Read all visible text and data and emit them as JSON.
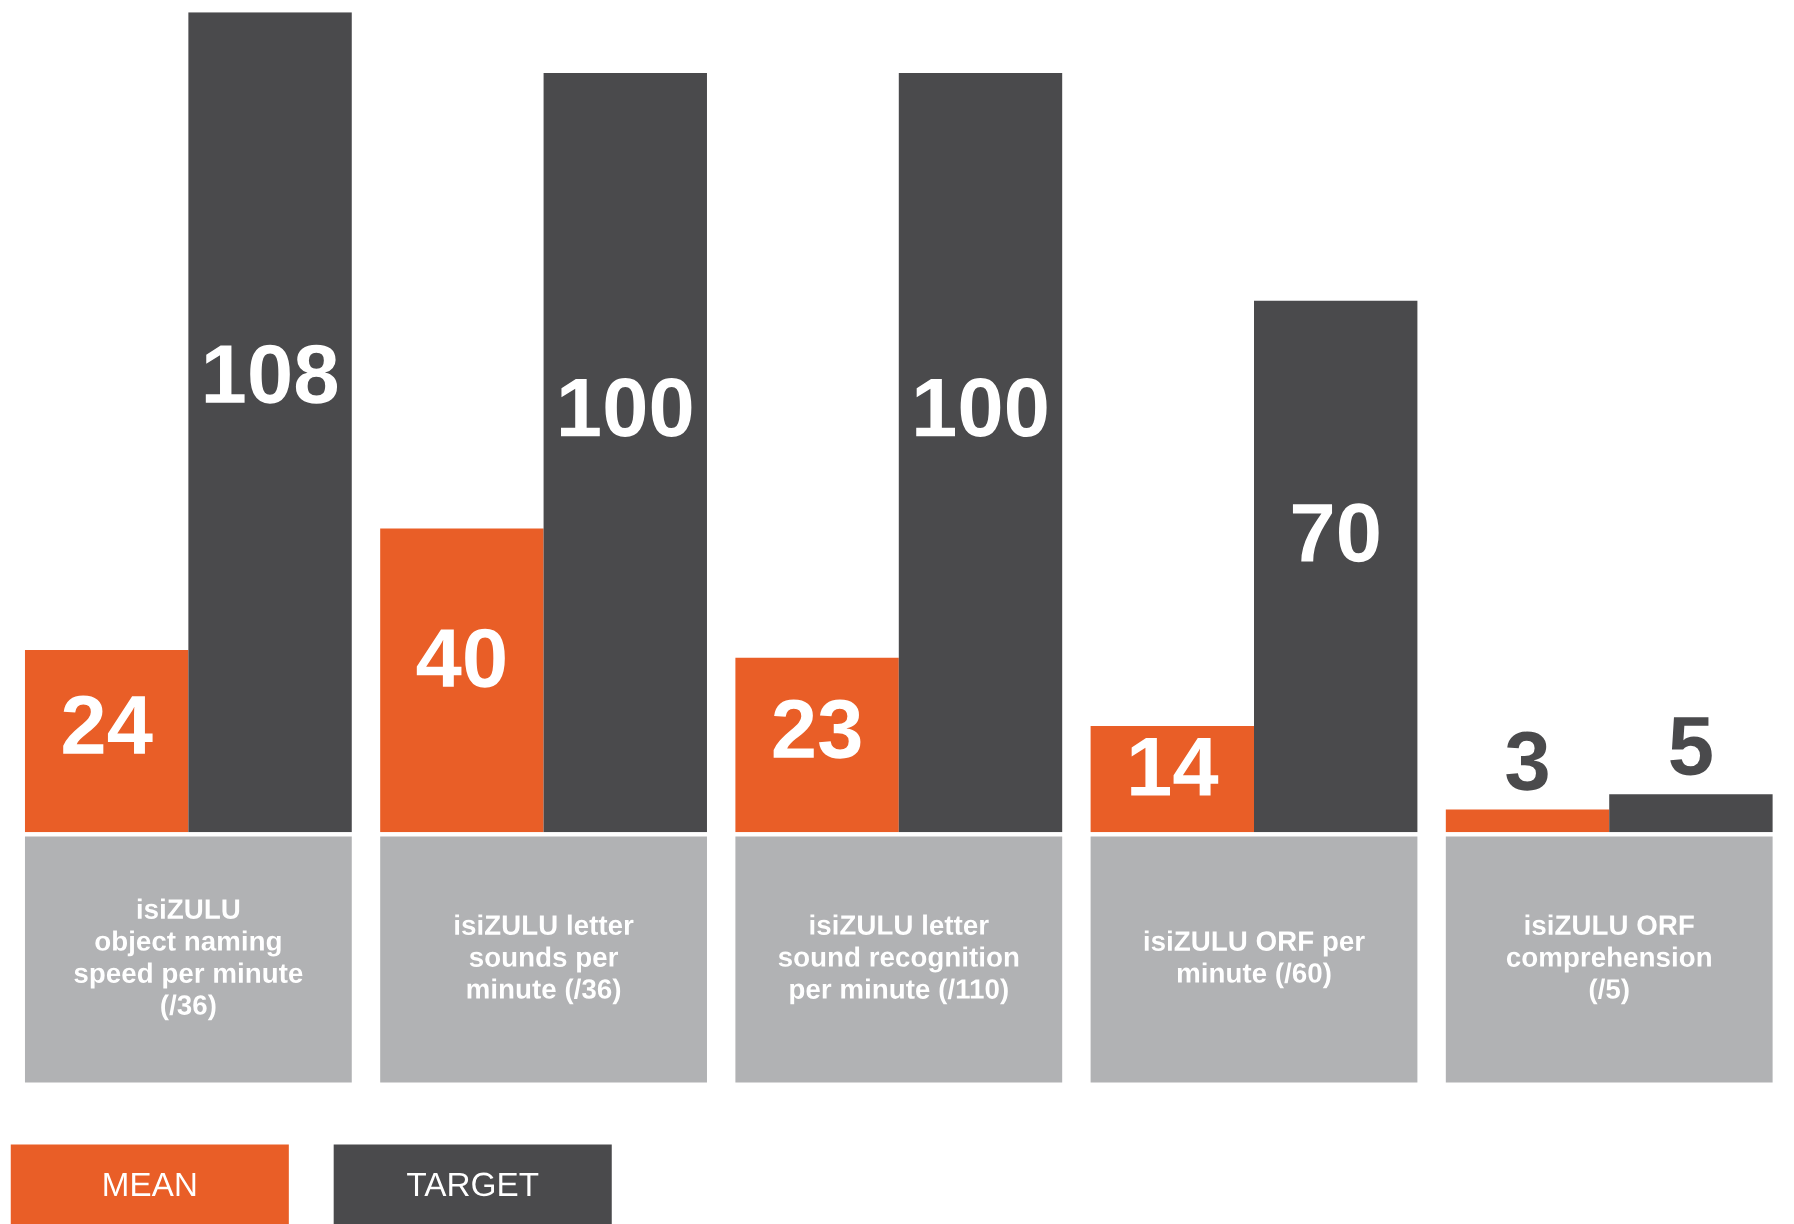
{
  "chart_data": {
    "type": "bar",
    "categories": [
      "isiZULU\nobject naming\nspeed per minute\n(/36)",
      "isiZULU letter\nsounds per\nminute (/36)",
      "isiZULU letter\nsound recognition\nper minute (/110)",
      "isiZULU ORF per\nminute (/60)",
      "isiZULU ORF\ncomprehension\n(/5)"
    ],
    "series": [
      {
        "name": "MEAN",
        "color": "#e95e27",
        "values": [
          24,
          40,
          23,
          14,
          3
        ]
      },
      {
        "name": "TARGET",
        "color": "#4a4a4c",
        "values": [
          108,
          100,
          100,
          70,
          5
        ]
      }
    ],
    "data_labels": true,
    "legend": "bottom left"
  }
}
